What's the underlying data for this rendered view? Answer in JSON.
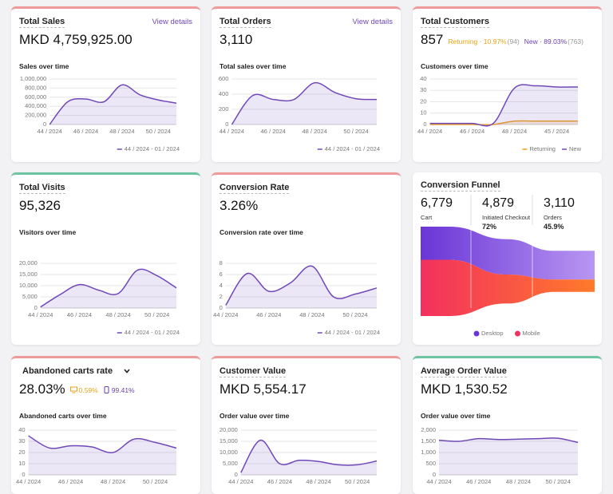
{
  "cards": [
    {
      "border": "#ef9a9a",
      "title": "Total Sales",
      "link": "View details",
      "value": "MKD 4,759,925.00",
      "subtitle": "Sales over time",
      "chart": {
        "type": "line",
        "categories": [
          "44 / 2024",
          null,
          "46 / 2024",
          null,
          "48 / 2024",
          null,
          "50 / 2024",
          null
        ],
        "series": [
          {
            "name": "44 / 2024 - 01 / 2024",
            "color": "#7048b8",
            "values": [
              0,
              500000,
              560000,
              500000,
              870000,
              650000,
              540000,
              470000
            ]
          }
        ],
        "ylim": [
          0,
          1000000
        ],
        "yticks": [
          0,
          {
            "value": 200000,
            "label": "200,000"
          },
          {
            "value": 400000,
            "label": "400,000"
          },
          {
            "value": 600000,
            "label": "600,000"
          },
          {
            "value": 800000,
            "label": "800,000"
          },
          {
            "value": 1000000,
            "label": "1,000,000"
          }
        ],
        "grid": true,
        "area": true
      }
    },
    {
      "border": "#ef9a9a",
      "title": "Total Orders",
      "link": "View details",
      "value": "3,110",
      "subtitle": "Total sales over time",
      "chart": {
        "type": "line",
        "categories": [
          "44 / 2024",
          null,
          "46 / 2024",
          null,
          "48 / 2024",
          null,
          "50 / 2024",
          null
        ],
        "series": [
          {
            "name": "44 / 2024 - 01 / 2024",
            "color": "#7048b8",
            "values": [
              0,
              380,
              330,
              330,
              550,
              420,
              340,
              330
            ]
          }
        ],
        "ylim": [
          0,
          600
        ],
        "yticks": [
          0,
          200,
          400,
          600
        ],
        "grid": true,
        "area": true
      }
    },
    {
      "border": "#ef9a9a",
      "title": "Total Customers",
      "value": "857",
      "stats": [
        {
          "label": "Returning · 10.97%",
          "count": "(94)",
          "color": "#e8a317"
        },
        {
          "label": "New · 89.03%",
          "count": "(763)",
          "color": "#6b3fb0"
        }
      ],
      "subtitle": "Customers over time",
      "chart": {
        "type": "line",
        "categories": [
          "44 / 2024",
          null,
          "46 / 2024",
          null,
          "48 / 2024",
          null,
          "45 / 2024",
          null
        ],
        "series": [
          {
            "name": "Returning",
            "color": "#f0a020",
            "values": [
              0,
              0,
              0,
              0,
              3,
              3,
              3,
              3
            ]
          },
          {
            "name": "New",
            "color": "#7048b8",
            "values": [
              1,
              1,
              1,
              1,
              32,
              34,
              33,
              33
            ]
          }
        ],
        "ylim": [
          0,
          40
        ],
        "yticks": [
          0,
          10,
          20,
          30,
          40
        ],
        "grid": true,
        "area": true
      }
    },
    {
      "border": "#6cc4a0",
      "title": "Total Visits",
      "value": "95,326",
      "subtitle": "Visitors over time",
      "chart": {
        "type": "line",
        "categories": [
          "44 / 2024",
          null,
          "46 / 2024",
          null,
          "48 / 2024",
          null,
          "50 / 2024",
          null
        ],
        "series": [
          {
            "name": "44 / 2024 - 01 / 2024",
            "color": "#7048b8",
            "values": [
              500,
              6000,
              10500,
              8000,
              6500,
              17000,
              14500,
              9000
            ]
          }
        ],
        "ylim": [
          0,
          20000
        ],
        "yticks": [
          0,
          {
            "value": 5000,
            "label": "5,000"
          },
          {
            "value": 10000,
            "label": "10,000"
          },
          {
            "value": 15000,
            "label": "15,000"
          },
          {
            "value": 20000,
            "label": "20,000"
          }
        ],
        "grid": true,
        "area": true
      }
    },
    {
      "border": "#ef9a9a",
      "title": "Conversion Rate",
      "value": "3.26%",
      "subtitle": "Conversion rate over time",
      "chart": {
        "type": "line",
        "categories": [
          "44 / 2024",
          null,
          "46 / 2024",
          null,
          "48 / 2024",
          null,
          "50 / 2024",
          null
        ],
        "series": [
          {
            "name": "44 / 2024 - 01 / 2024",
            "color": "#7048b8",
            "values": [
              0.5,
              6.2,
              3,
              4.5,
              7.5,
              2,
              2.5,
              3.6
            ]
          }
        ],
        "ylim": [
          0,
          8
        ],
        "yticks": [
          0,
          2,
          4,
          6,
          8
        ],
        "grid": true,
        "area": true
      }
    },
    {
      "title": "Conversion Funnel",
      "chart": {
        "type": "funnel",
        "steps": [
          {
            "count": {
              "value": 6779,
              "label": "6,779"
            },
            "name": "Cart"
          },
          {
            "count": {
              "value": 4879,
              "label": "4,879"
            },
            "name": "Initiated Checkout",
            "rate": "72%"
          },
          {
            "count": {
              "value": 3110,
              "label": "3,110"
            },
            "name": "Orders",
            "rate": "45.9%"
          }
        ],
        "series": [
          {
            "name": "Desktop",
            "colors": [
              "#6a35d6",
              "#b896f2"
            ]
          },
          {
            "name": "Mobile",
            "colors": [
              "#f2305f",
              "#ff7a2a"
            ]
          }
        ]
      }
    },
    {
      "border": "#ef9a9a",
      "title": "Abandoned carts rate",
      "dropdown": true,
      "value": "28.03%",
      "stats": [
        {
          "label": "0.59%",
          "color": "#e8a317",
          "icon": "desktop"
        },
        {
          "label": "99.41%",
          "color": "#6b3fb0",
          "icon": "mobile"
        }
      ],
      "subtitle": "Abandoned carts over time",
      "chart": {
        "type": "line",
        "categories": [
          "44 / 2024",
          null,
          "46 / 2024",
          null,
          "48 / 2024",
          null,
          "50 / 2024",
          null
        ],
        "series": [
          {
            "color": "#7048b8",
            "values": [
              35,
              24,
              26,
              25,
              20,
              32,
              29,
              24
            ]
          }
        ],
        "ylim": [
          0,
          40
        ],
        "yticks": [
          0,
          10,
          20,
          30,
          40
        ],
        "grid": true,
        "area": true
      }
    },
    {
      "border": "#ef9a9a",
      "title": "Customer Value",
      "value": "MKD 5,554.17",
      "subtitle": "Order value over time",
      "chart": {
        "type": "line",
        "categories": [
          "44 / 2024",
          null,
          "46 / 2024",
          null,
          "48 / 2024",
          null,
          "50 / 2024",
          null
        ],
        "series": [
          {
            "color": "#7048b8",
            "values": [
              1000,
              15500,
              5000,
              6500,
              6000,
              4500,
              4500,
              6200
            ]
          }
        ],
        "ylim": [
          0,
          20000
        ],
        "yticks": [
          0,
          {
            "value": 5000,
            "label": "5,000"
          },
          {
            "value": 10000,
            "label": "10,000"
          },
          {
            "value": 15000,
            "label": "15,000"
          },
          {
            "value": 20000,
            "label": "20,000"
          }
        ],
        "grid": true,
        "area": true
      }
    },
    {
      "border": "#6cc4a0",
      "title": "Average Order Value",
      "value": "MKD 1,530.52",
      "subtitle": "Order value over time",
      "chart": {
        "type": "line",
        "categories": [
          "44 / 2024",
          null,
          "46 / 2024",
          null,
          "48 / 2024",
          null,
          "50 / 2024",
          null
        ],
        "series": [
          {
            "color": "#7048b8",
            "values": [
              1550,
              1500,
              1620,
              1580,
              1600,
              1620,
              1640,
              1450
            ]
          }
        ],
        "ylim": [
          0,
          2000
        ],
        "yticks": [
          0,
          500,
          {
            "value": 1000,
            "label": "1,000"
          },
          {
            "value": 1500,
            "label": "1,500"
          },
          {
            "value": 2000,
            "label": "2,000"
          }
        ],
        "grid": true,
        "area": true
      }
    }
  ]
}
